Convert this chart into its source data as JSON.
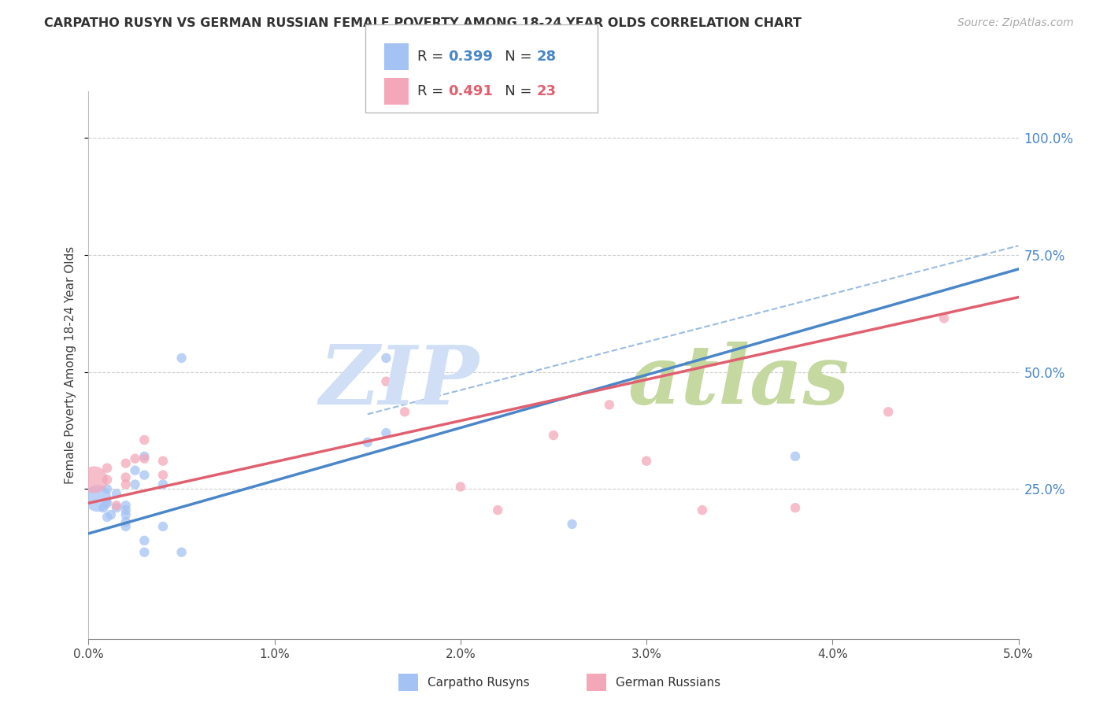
{
  "title": "CARPATHO RUSYN VS GERMAN RUSSIAN FEMALE POVERTY AMONG 18-24 YEAR OLDS CORRELATION CHART",
  "source": "Source: ZipAtlas.com",
  "ylabel": "Female Poverty Among 18-24 Year Olds",
  "xlim": [
    0.0,
    0.05
  ],
  "ylim": [
    -0.07,
    1.1
  ],
  "xtick_labels": [
    "0.0%",
    "1.0%",
    "2.0%",
    "3.0%",
    "4.0%",
    "5.0%"
  ],
  "xtick_vals": [
    0.0,
    0.01,
    0.02,
    0.03,
    0.04,
    0.05
  ],
  "ytick_labels": [
    "25.0%",
    "50.0%",
    "75.0%",
    "100.0%"
  ],
  "ytick_vals": [
    0.25,
    0.5,
    0.75,
    1.0
  ],
  "color_blue": "#a4c2f4",
  "color_pink": "#f4a7b9",
  "color_blue_line": "#4a86c8",
  "color_pink_line": "#e06070",
  "color_blue_dark": "#3a6ea8",
  "scatter_blue_x": [
    0.0005,
    0.0008,
    0.001,
    0.001,
    0.001,
    0.0012,
    0.0015,
    0.0015,
    0.002,
    0.002,
    0.002,
    0.002,
    0.002,
    0.0025,
    0.0025,
    0.003,
    0.003,
    0.003,
    0.003,
    0.004,
    0.004,
    0.005,
    0.005,
    0.015,
    0.016,
    0.016,
    0.026,
    0.038
  ],
  "scatter_blue_y": [
    0.23,
    0.21,
    0.19,
    0.22,
    0.25,
    0.195,
    0.21,
    0.24,
    0.17,
    0.18,
    0.195,
    0.205,
    0.215,
    0.26,
    0.29,
    0.115,
    0.14,
    0.28,
    0.32,
    0.17,
    0.26,
    0.115,
    0.53,
    0.35,
    0.37,
    0.53,
    0.175,
    0.32
  ],
  "scatter_pink_x": [
    0.0003,
    0.001,
    0.001,
    0.0015,
    0.002,
    0.002,
    0.002,
    0.0025,
    0.003,
    0.003,
    0.004,
    0.004,
    0.016,
    0.017,
    0.02,
    0.022,
    0.025,
    0.028,
    0.03,
    0.033,
    0.038,
    0.043,
    0.046
  ],
  "scatter_pink_y": [
    0.27,
    0.27,
    0.295,
    0.215,
    0.26,
    0.275,
    0.305,
    0.315,
    0.315,
    0.355,
    0.28,
    0.31,
    0.48,
    0.415,
    0.255,
    0.205,
    0.365,
    0.43,
    0.31,
    0.205,
    0.21,
    0.415,
    0.615
  ],
  "scatter_blue_s": [
    600,
    80,
    80,
    80,
    80,
    80,
    80,
    80,
    80,
    80,
    80,
    80,
    80,
    80,
    80,
    80,
    80,
    80,
    80,
    80,
    80,
    80,
    80,
    80,
    80,
    80,
    80,
    80
  ],
  "scatter_pink_s": [
    600,
    80,
    80,
    80,
    80,
    80,
    80,
    80,
    80,
    80,
    80,
    80,
    80,
    80,
    80,
    80,
    80,
    80,
    80,
    80,
    80,
    80,
    80
  ],
  "trendline_blue_x0": 0.0,
  "trendline_blue_y0": 0.155,
  "trendline_blue_x1": 0.05,
  "trendline_blue_y1": 0.72,
  "trendline_pink_x0": 0.0,
  "trendline_pink_y0": 0.22,
  "trendline_pink_x1": 0.05,
  "trendline_pink_y1": 0.66,
  "trendline_dashed_x0": 0.015,
  "trendline_dashed_y0": 0.41,
  "trendline_dashed_x1": 0.05,
  "trendline_dashed_y1": 0.77,
  "grid_color": "#cccccc",
  "background_color": "#ffffff",
  "legend_r1": "0.399",
  "legend_n1": "28",
  "legend_r2": "0.491",
  "legend_n2": "23",
  "watermark_zip_color": "#d0dff5",
  "watermark_atlas_color": "#c5d8a0"
}
